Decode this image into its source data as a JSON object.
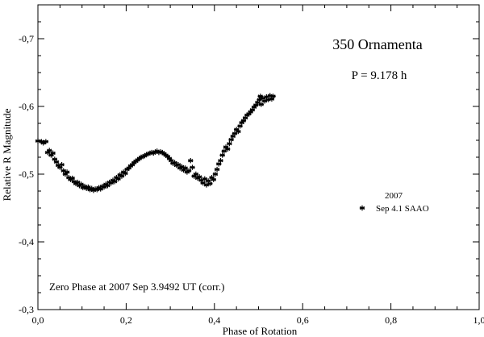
{
  "chart_data": {
    "type": "scatter",
    "title": "350 Ornamenta",
    "subtitle": "P = 9.178 h",
    "xlabel": "Phase of Rotation",
    "ylabel": "Relative R Magnitude",
    "xlim": [
      0.0,
      1.0
    ],
    "ylim": [
      -0.3,
      -0.75
    ],
    "y_inverted": true,
    "x_ticks": [
      0.0,
      0.2,
      0.4,
      0.6,
      0.8,
      1.0
    ],
    "x_tick_labels": [
      "0,0",
      "0,2",
      "0,4",
      "0,6",
      "0,8",
      "1,0"
    ],
    "y_ticks": [
      -0.3,
      -0.4,
      -0.5,
      -0.6,
      -0.7
    ],
    "y_tick_labels": [
      "-0,3",
      "-0,4",
      "-0,5",
      "-0,6",
      "-0,7"
    ],
    "grid": false,
    "legend_placement": "right",
    "legend_title": "2007",
    "annotation": "Zero Phase at 2007 Sep 3.9492 UT (corr.)",
    "marker": "asterisk",
    "series": [
      {
        "name": "Sep 4.1 SAAO",
        "points": [
          [
            0.0,
            -0.549
          ],
          [
            0.008,
            -0.548
          ],
          [
            0.012,
            -0.546
          ],
          [
            0.018,
            -0.548
          ],
          [
            0.022,
            -0.532
          ],
          [
            0.026,
            -0.535
          ],
          [
            0.03,
            -0.528
          ],
          [
            0.034,
            -0.531
          ],
          [
            0.038,
            -0.522
          ],
          [
            0.042,
            -0.518
          ],
          [
            0.046,
            -0.513
          ],
          [
            0.05,
            -0.51
          ],
          [
            0.054,
            -0.514
          ],
          [
            0.058,
            -0.505
          ],
          [
            0.062,
            -0.5
          ],
          [
            0.066,
            -0.503
          ],
          [
            0.07,
            -0.495
          ],
          [
            0.074,
            -0.492
          ],
          [
            0.078,
            -0.494
          ],
          [
            0.082,
            -0.489
          ],
          [
            0.086,
            -0.486
          ],
          [
            0.09,
            -0.488
          ],
          [
            0.094,
            -0.483
          ],
          [
            0.098,
            -0.485
          ],
          [
            0.102,
            -0.48
          ],
          [
            0.106,
            -0.482
          ],
          [
            0.11,
            -0.479
          ],
          [
            0.114,
            -0.481
          ],
          [
            0.118,
            -0.477
          ],
          [
            0.122,
            -0.479
          ],
          [
            0.126,
            -0.476
          ],
          [
            0.13,
            -0.478
          ],
          [
            0.134,
            -0.477
          ],
          [
            0.138,
            -0.48
          ],
          [
            0.142,
            -0.478
          ],
          [
            0.146,
            -0.482
          ],
          [
            0.15,
            -0.481
          ],
          [
            0.154,
            -0.485
          ],
          [
            0.158,
            -0.483
          ],
          [
            0.162,
            -0.488
          ],
          [
            0.166,
            -0.487
          ],
          [
            0.17,
            -0.491
          ],
          [
            0.174,
            -0.489
          ],
          [
            0.178,
            -0.495
          ],
          [
            0.182,
            -0.493
          ],
          [
            0.186,
            -0.499
          ],
          [
            0.19,
            -0.497
          ],
          [
            0.194,
            -0.503
          ],
          [
            0.198,
            -0.501
          ],
          [
            0.202,
            -0.507
          ],
          [
            0.206,
            -0.509
          ],
          [
            0.21,
            -0.512
          ],
          [
            0.214,
            -0.514
          ],
          [
            0.218,
            -0.517
          ],
          [
            0.222,
            -0.519
          ],
          [
            0.226,
            -0.521
          ],
          [
            0.23,
            -0.523
          ],
          [
            0.234,
            -0.525
          ],
          [
            0.238,
            -0.526
          ],
          [
            0.242,
            -0.527
          ],
          [
            0.246,
            -0.529
          ],
          [
            0.25,
            -0.53
          ],
          [
            0.254,
            -0.531
          ],
          [
            0.258,
            -0.532
          ],
          [
            0.262,
            -0.531
          ],
          [
            0.266,
            -0.533
          ],
          [
            0.27,
            -0.534
          ],
          [
            0.274,
            -0.532
          ],
          [
            0.278,
            -0.533
          ],
          [
            0.282,
            -0.532
          ],
          [
            0.286,
            -0.53
          ],
          [
            0.29,
            -0.528
          ],
          [
            0.294,
            -0.526
          ],
          [
            0.298,
            -0.523
          ],
          [
            0.302,
            -0.52
          ],
          [
            0.306,
            -0.516
          ],
          [
            0.31,
            -0.517
          ],
          [
            0.314,
            -0.513
          ],
          [
            0.318,
            -0.514
          ],
          [
            0.322,
            -0.509
          ],
          [
            0.326,
            -0.511
          ],
          [
            0.33,
            -0.506
          ],
          [
            0.334,
            -0.509
          ],
          [
            0.338,
            -0.503
          ],
          [
            0.342,
            -0.505
          ],
          [
            0.346,
            -0.52
          ],
          [
            0.35,
            -0.51
          ],
          [
            0.354,
            -0.497
          ],
          [
            0.358,
            -0.5
          ],
          [
            0.362,
            -0.494
          ],
          [
            0.366,
            -0.496
          ],
          [
            0.37,
            -0.491
          ],
          [
            0.374,
            -0.487
          ],
          [
            0.378,
            -0.493
          ],
          [
            0.382,
            -0.484
          ],
          [
            0.386,
            -0.49
          ],
          [
            0.39,
            -0.486
          ],
          [
            0.394,
            -0.495
          ],
          [
            0.398,
            -0.492
          ],
          [
            0.402,
            -0.5
          ],
          [
            0.406,
            -0.507
          ],
          [
            0.41,
            -0.515
          ],
          [
            0.414,
            -0.52
          ],
          [
            0.418,
            -0.528
          ],
          [
            0.422,
            -0.534
          ],
          [
            0.426,
            -0.54
          ],
          [
            0.43,
            -0.537
          ],
          [
            0.434,
            -0.545
          ],
          [
            0.438,
            -0.551
          ],
          [
            0.442,
            -0.556
          ],
          [
            0.446,
            -0.56
          ],
          [
            0.45,
            -0.566
          ],
          [
            0.454,
            -0.563
          ],
          [
            0.458,
            -0.571
          ],
          [
            0.462,
            -0.576
          ],
          [
            0.466,
            -0.579
          ],
          [
            0.47,
            -0.583
          ],
          [
            0.474,
            -0.587
          ],
          [
            0.478,
            -0.589
          ],
          [
            0.482,
            -0.592
          ],
          [
            0.486,
            -0.595
          ],
          [
            0.49,
            -0.599
          ],
          [
            0.494,
            -0.602
          ],
          [
            0.498,
            -0.606
          ],
          [
            0.502,
            -0.61
          ],
          [
            0.504,
            -0.615
          ],
          [
            0.506,
            -0.603
          ],
          [
            0.51,
            -0.612
          ],
          [
            0.514,
            -0.608
          ],
          [
            0.518,
            -0.614
          ],
          [
            0.522,
            -0.61
          ],
          [
            0.526,
            -0.616
          ],
          [
            0.53,
            -0.611
          ],
          [
            0.533,
            -0.615
          ]
        ]
      }
    ]
  }
}
